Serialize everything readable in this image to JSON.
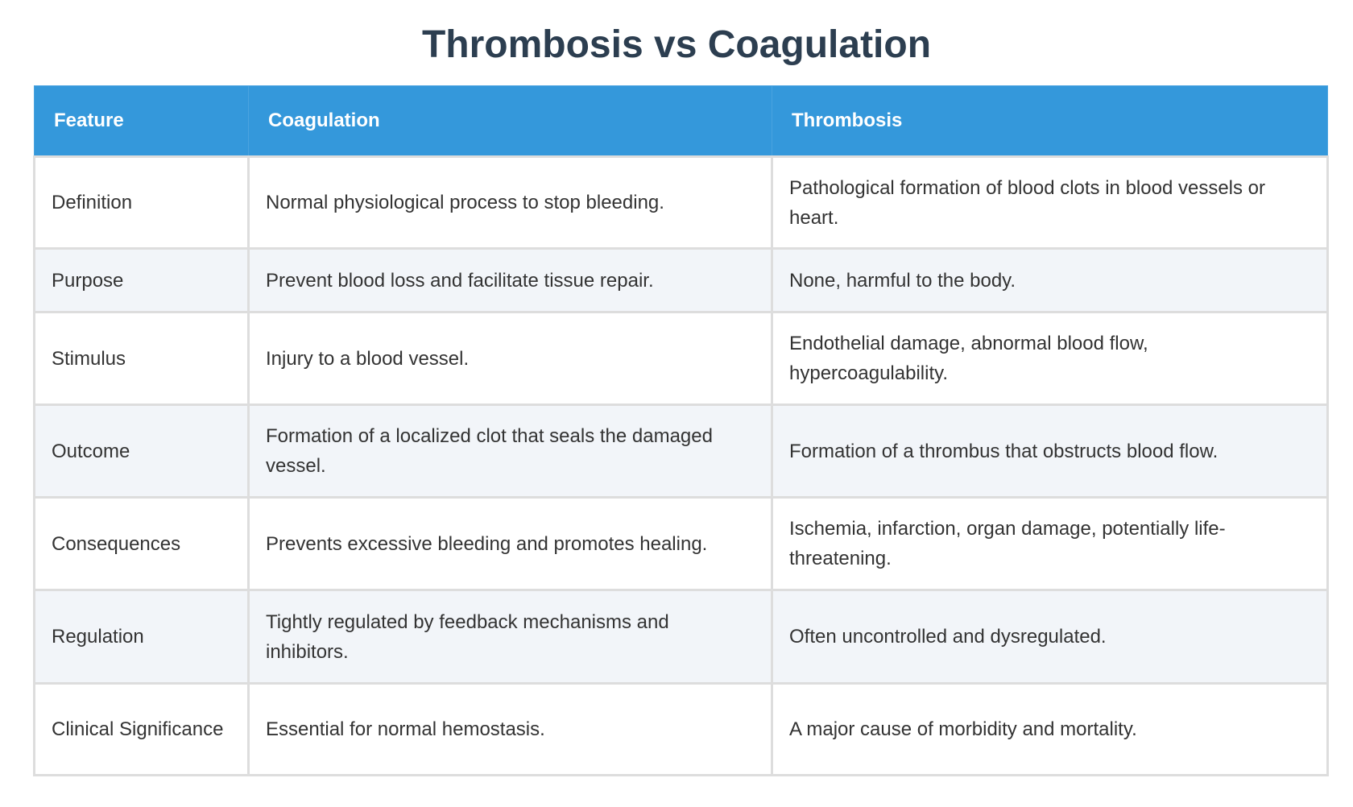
{
  "title": "Thrombosis vs Coagulation",
  "headers": [
    "Feature",
    "Coagulation",
    "Thrombosis"
  ],
  "rows": [
    [
      "Definition",
      "Normal physiological process to stop bleeding.",
      "Pathological formation of blood clots in blood vessels or heart."
    ],
    [
      "Purpose",
      "Prevent blood loss and facilitate tissue repair.",
      "None, harmful to the body."
    ],
    [
      "Stimulus",
      "Injury to a blood vessel.",
      "Endothelial damage, abnormal blood flow, hypercoagulability."
    ],
    [
      "Outcome",
      "Formation of a localized clot that seals the damaged vessel.",
      "Formation of a thrombus that obstructs blood flow."
    ],
    [
      "Consequences",
      "Prevents excessive bleeding and promotes healing.",
      "Ischemia, infarction, organ damage, potentially life-threatening."
    ],
    [
      "Regulation",
      "Tightly regulated by feedback mechanisms and inhibitors.",
      "Often uncontrolled and dysregulated."
    ],
    [
      "Clinical Significance",
      "Essential for normal hemostasis.",
      "A major cause of morbidity and mortality."
    ]
  ]
}
